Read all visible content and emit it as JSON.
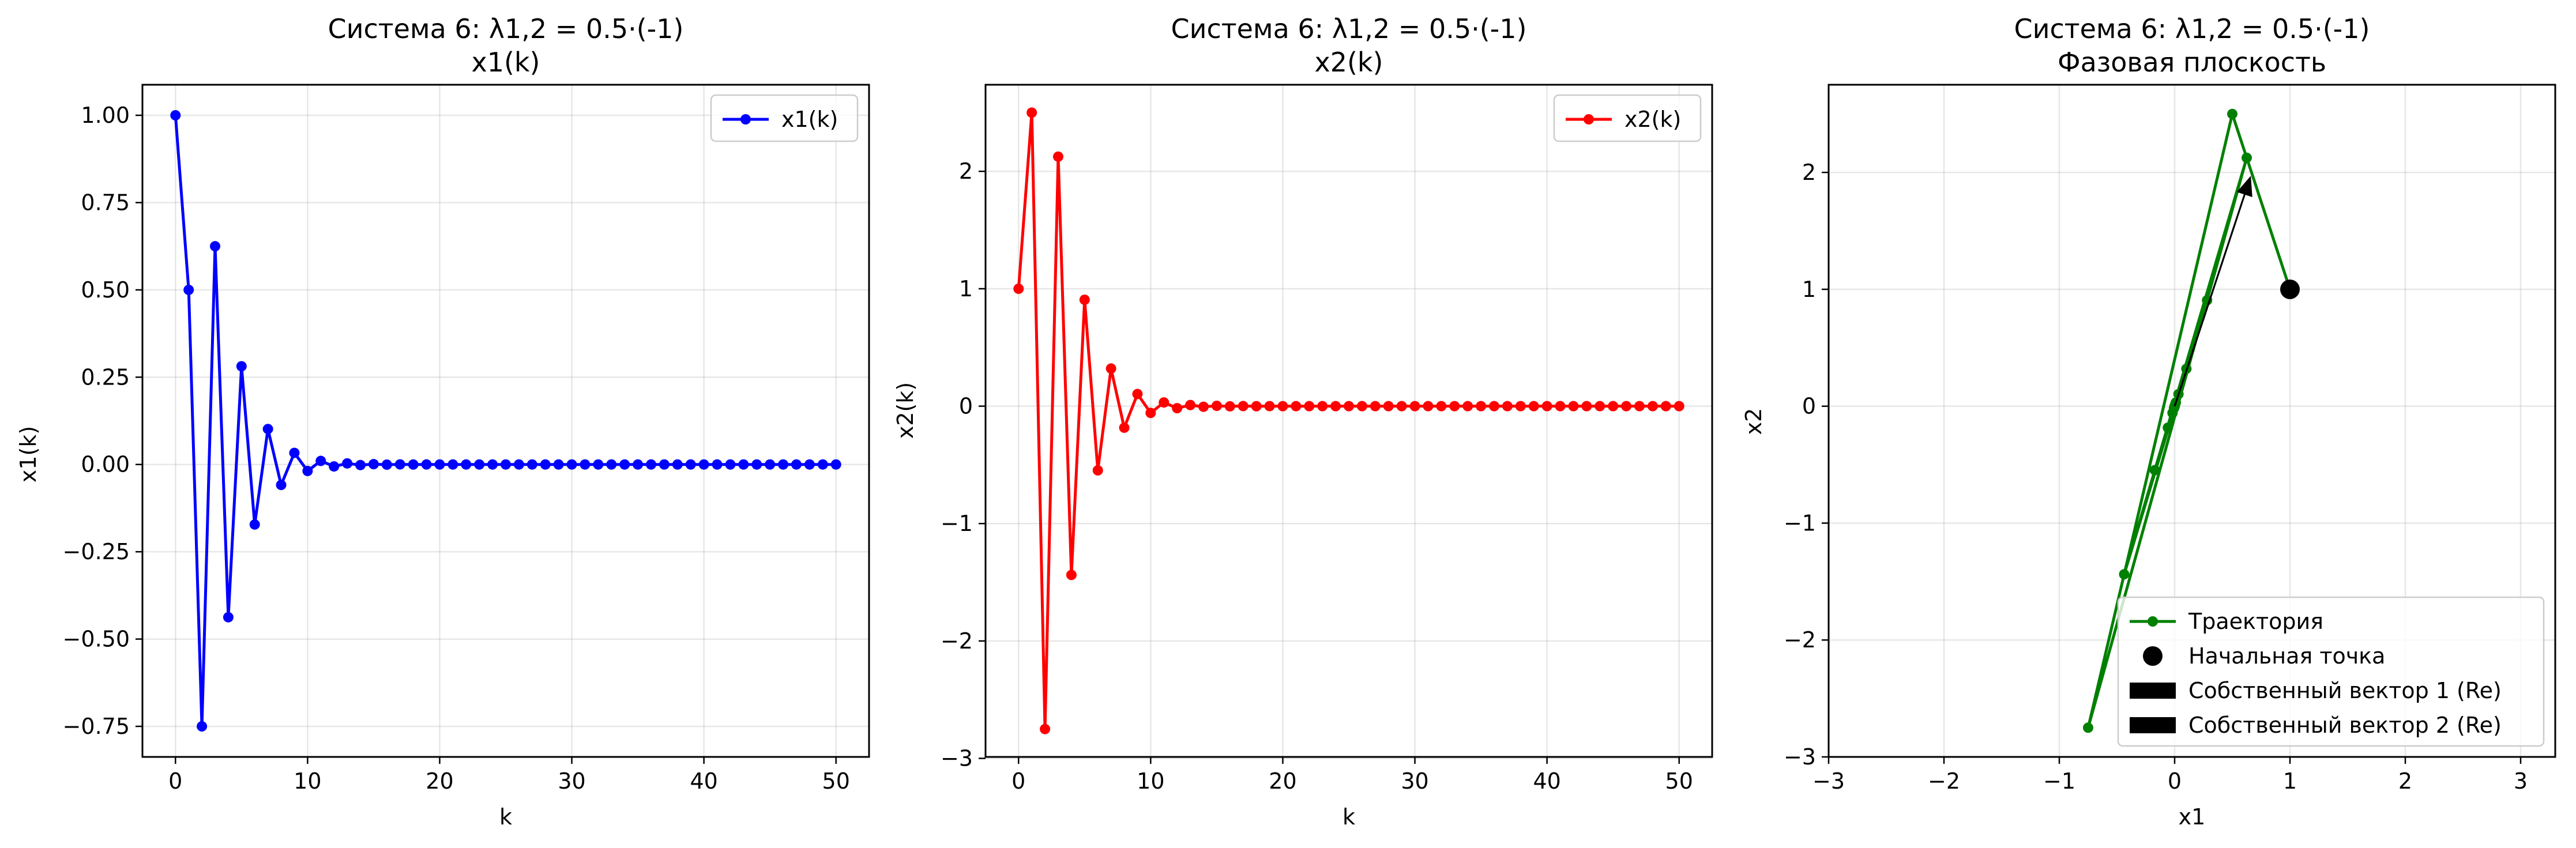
{
  "chart_data": [
    {
      "type": "line",
      "title": "Система 6: λ1,2 = 0.5·(-1)",
      "subtitle": "x1(k)",
      "xlabel": "k",
      "ylabel": "x1(k)",
      "xlim": [
        -2.5,
        52.5
      ],
      "ylim": [
        -0.8375,
        1.0875
      ],
      "xticks": [
        0,
        10,
        20,
        30,
        40,
        50
      ],
      "yticks": [
        -0.75,
        -0.5,
        -0.25,
        0.0,
        0.25,
        0.5,
        0.75,
        1.0
      ],
      "ytick_labels": [
        "−0.75",
        "−0.50",
        "−0.25",
        "0.00",
        "0.25",
        "0.50",
        "0.75",
        "1.00"
      ],
      "grid": true,
      "legend_position": "top-right",
      "series": [
        {
          "name": "x1(k)",
          "color": "#0000ff",
          "marker": "circle",
          "x": [
            0,
            1,
            2,
            3,
            4,
            5,
            6,
            7,
            8,
            9,
            10,
            11,
            12,
            13,
            14,
            15,
            16,
            17,
            18,
            19,
            20,
            21,
            22,
            23,
            24,
            25,
            26,
            27,
            28,
            29,
            30,
            31,
            32,
            33,
            34,
            35,
            36,
            37,
            38,
            39,
            40,
            41,
            42,
            43,
            44,
            45,
            46,
            47,
            48,
            49,
            50
          ],
          "values": [
            1,
            0.5,
            -0.75,
            0.625,
            -0.4375,
            0.28125,
            -0.171875,
            0.1015625,
            -0.05859,
            0.0332,
            -0.01855,
            0.01025,
            -0.00562,
            0.00305,
            -0.00165,
            0.00089,
            -0.00047,
            0.00025,
            -0.00013,
            7e-05,
            -4e-05,
            0,
            0,
            0,
            0,
            0,
            0,
            0,
            0,
            0,
            0,
            0,
            0,
            0,
            0,
            0,
            0,
            0,
            0,
            0,
            0,
            0,
            0,
            0,
            0,
            0,
            0,
            0,
            0,
            0,
            0
          ]
        }
      ]
    },
    {
      "type": "line",
      "title": "Система 6: λ1,2 = 0.5·(-1)",
      "subtitle": "x2(k)",
      "xlabel": "k",
      "ylabel": "x2(k)",
      "xlim": [
        -2.5,
        52.5
      ],
      "ylim": [
        -2.9875,
        2.7375
      ],
      "xticks": [
        0,
        10,
        20,
        30,
        40,
        50
      ],
      "yticks": [
        -3,
        -2,
        -1,
        0,
        1,
        2
      ],
      "ytick_labels": [
        "−3",
        "−2",
        "−1",
        "0",
        "1",
        "2"
      ],
      "grid": true,
      "legend_position": "top-right",
      "series": [
        {
          "name": "x2(k)",
          "color": "#ff0000",
          "marker": "circle",
          "x": [
            0,
            1,
            2,
            3,
            4,
            5,
            6,
            7,
            8,
            9,
            10,
            11,
            12,
            13,
            14,
            15,
            16,
            17,
            18,
            19,
            20,
            21,
            22,
            23,
            24,
            25,
            26,
            27,
            28,
            29,
            30,
            31,
            32,
            33,
            34,
            35,
            36,
            37,
            38,
            39,
            40,
            41,
            42,
            43,
            44,
            45,
            46,
            47,
            48,
            49,
            50
          ],
          "values": [
            1,
            2.5,
            -2.75,
            2.125,
            -1.4375,
            0.90625,
            -0.546875,
            0.3203125,
            -0.18359,
            0.10352,
            -0.05762,
            0.03174,
            -0.01733,
            0.0094,
            -0.00507,
            0.00272,
            -0.00145,
            0.00077,
            -0.00041,
            0.00022,
            -0.00011,
            0,
            0,
            0,
            0,
            0,
            0,
            0,
            0,
            0,
            0,
            0,
            0,
            0,
            0,
            0,
            0,
            0,
            0,
            0,
            0,
            0,
            0,
            0,
            0,
            0,
            0,
            0,
            0,
            0,
            0
          ]
        }
      ]
    },
    {
      "type": "line",
      "title": "Система 6: λ1,2 = 0.5·(-1)",
      "subtitle": "Фазовая плоскость",
      "xlabel": "x1",
      "ylabel": "x2",
      "xlim": [
        -3,
        3.3
      ],
      "ylim": [
        -3,
        2.75
      ],
      "xticks": [
        -3,
        -2,
        -1,
        0,
        1,
        2,
        3
      ],
      "xtick_labels": [
        "−3",
        "−2",
        "−1",
        "0",
        "1",
        "2",
        "3"
      ],
      "yticks": [
        -3,
        -2,
        -1,
        0,
        1,
        2
      ],
      "ytick_labels": [
        "−3",
        "−2",
        "−1",
        "0",
        "1",
        "2"
      ],
      "grid": true,
      "legend_position": "lower-right",
      "series": [
        {
          "name": "Траектория",
          "color": "#008000",
          "marker": "circle",
          "x": [
            1,
            0.5,
            -0.75,
            0.625,
            -0.4375,
            0.28125,
            -0.171875,
            0.1015625,
            -0.05859,
            0.0332,
            -0.01855,
            0.01025,
            -0.00562,
            0.00305,
            -0.00165,
            0.00089,
            -0.00047,
            0.00025,
            -0.00013,
            7e-05,
            -4e-05
          ],
          "values": [
            1,
            2.5,
            -2.75,
            2.125,
            -1.4375,
            0.90625,
            -0.546875,
            0.3203125,
            -0.18359,
            0.10352,
            -0.05762,
            0.03174,
            -0.01733,
            0.0094,
            -0.00507,
            0.00272,
            -0.00145,
            0.00077,
            -0.00041,
            0.00022,
            -0.00011
          ]
        },
        {
          "name": "Начальная точка",
          "color": "#000000",
          "marker": "big-circle",
          "x": [
            1
          ],
          "values": [
            1
          ]
        },
        {
          "name": "Собственный вектор 1 (Re)",
          "color": "#000000",
          "type": "arrow",
          "from": [
            0,
            0
          ],
          "to": [
            0.66,
            1.97
          ]
        },
        {
          "name": "Собственный вектор 2 (Re)",
          "color": "#000000",
          "type": "arrow",
          "from": [
            0,
            0
          ],
          "to": [
            0.66,
            1.97
          ]
        }
      ]
    }
  ]
}
